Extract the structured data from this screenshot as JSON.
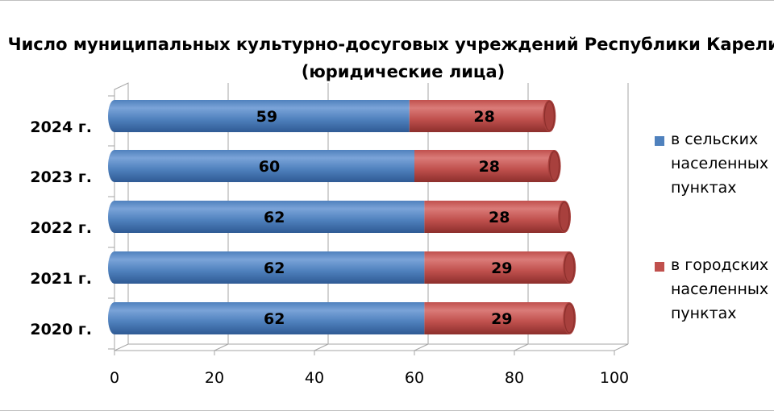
{
  "chart_data": {
    "type": "bar",
    "orientation": "horizontal",
    "stacked": true,
    "title": "Число муниципальных культурно-досуговых учреждений Республики Карелия",
    "subtitle": "(юридические лица)",
    "categories": [
      "2024 г.",
      "2023 г.",
      "2022 г.",
      "2021 г.",
      "2020 г."
    ],
    "series": [
      {
        "name": "в сельских населенных пунктах",
        "color": "#4f81bd",
        "values": [
          59,
          60,
          62,
          62,
          62
        ]
      },
      {
        "name": "в городских населенных пунктах",
        "color": "#c0504d",
        "values": [
          28,
          28,
          28,
          29,
          29
        ]
      }
    ],
    "xlim": [
      0,
      100
    ],
    "xticks": [
      "0",
      "20",
      "40",
      "60",
      "80",
      "100"
    ],
    "grid": true,
    "legend_position": "right"
  }
}
